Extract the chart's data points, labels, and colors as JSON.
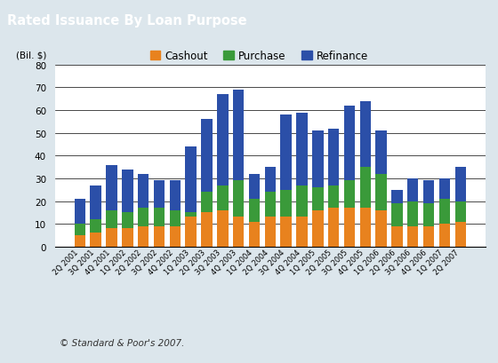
{
  "title": "Rated Issuance By Loan Purpose",
  "title_bg_color": "#6b8fa0",
  "title_text_color": "#ffffff",
  "ylabel": "(Bil. $)",
  "ylim": [
    0,
    80
  ],
  "yticks": [
    0,
    10,
    20,
    30,
    40,
    50,
    60,
    70,
    80
  ],
  "copyright": "© Standard & Poor's 2007.",
  "legend_labels": [
    "Cashout",
    "Purchase",
    "Refinance"
  ],
  "colors": {
    "cashout": "#e8821e",
    "purchase": "#3a9a3a",
    "refinance": "#2b4fa8"
  },
  "categories": [
    "2Q 2001",
    "3Q 2001",
    "4Q 2001",
    "1Q 2002",
    "2Q 2002",
    "3Q 2002",
    "4Q 2002",
    "1Q 2003",
    "2Q 2003",
    "3Q 2003",
    "4Q 2003",
    "1Q 2004",
    "2Q 2004",
    "3Q 2004",
    "4Q 2004",
    "1Q 2005",
    "2Q 2005",
    "3Q 2005",
    "4Q 2005",
    "1Q 2006",
    "2Q 2006",
    "3Q 2006",
    "4Q 2006",
    "1Q 2007",
    "2Q 2007"
  ],
  "cashout": [
    5,
    6,
    8,
    8,
    9,
    9,
    9,
    13,
    15,
    16,
    13,
    11,
    13,
    13,
    13,
    16,
    17,
    17,
    17,
    16,
    9,
    9,
    9,
    10,
    11
  ],
  "purchase": [
    5,
    6,
    8,
    7,
    8,
    8,
    7,
    2,
    9,
    11,
    16,
    10,
    11,
    12,
    14,
    10,
    10,
    12,
    18,
    16,
    10,
    11,
    10,
    11,
    9
  ],
  "refinance": [
    11,
    15,
    20,
    19,
    15,
    12,
    13,
    29,
    32,
    40,
    40,
    11,
    11,
    33,
    32,
    25,
    25,
    33,
    29,
    19,
    6,
    10,
    10,
    9,
    15
  ]
}
